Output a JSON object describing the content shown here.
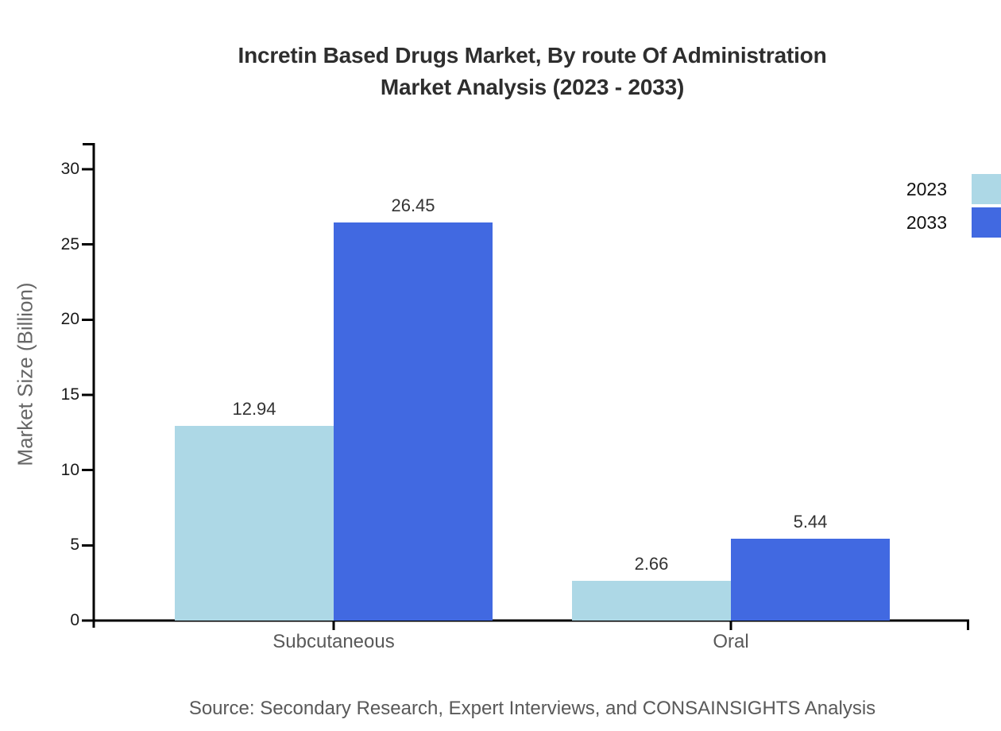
{
  "chart_data": {
    "type": "bar",
    "title_line1": "Incretin Based Drugs Market, By route Of Administration",
    "title_line2": "Market Analysis (2023 - 2033)",
    "ylabel": "Market Size (Billion)",
    "xlabel": "",
    "categories": [
      "Subcutaneous",
      "Oral"
    ],
    "series": [
      {
        "name": "2023",
        "color": "#ADD8E6",
        "values": [
          12.94,
          2.66
        ]
      },
      {
        "name": "2033",
        "color": "#4169E1",
        "values": [
          26.45,
          5.44
        ]
      }
    ],
    "yticks": [
      0,
      5,
      10,
      15,
      20,
      25,
      30
    ],
    "ylim": [
      0,
      31.7
    ],
    "grid": false,
    "legend_position": "top-right",
    "value_label_decimals": 2
  },
  "source_note": "Source: Secondary Research, Expert Interviews, and CONSAINSIGHTS Analysis",
  "colors": {
    "background": "#ffffff",
    "axis": "#000000",
    "title": "#2e2e2e",
    "tick_label": "#1a1a1a",
    "category_label": "#595959",
    "value_label": "#333333",
    "ylabel": "#666666",
    "source": "#595959",
    "series_2023": "#ADD8E6",
    "series_2033": "#4169E1"
  }
}
